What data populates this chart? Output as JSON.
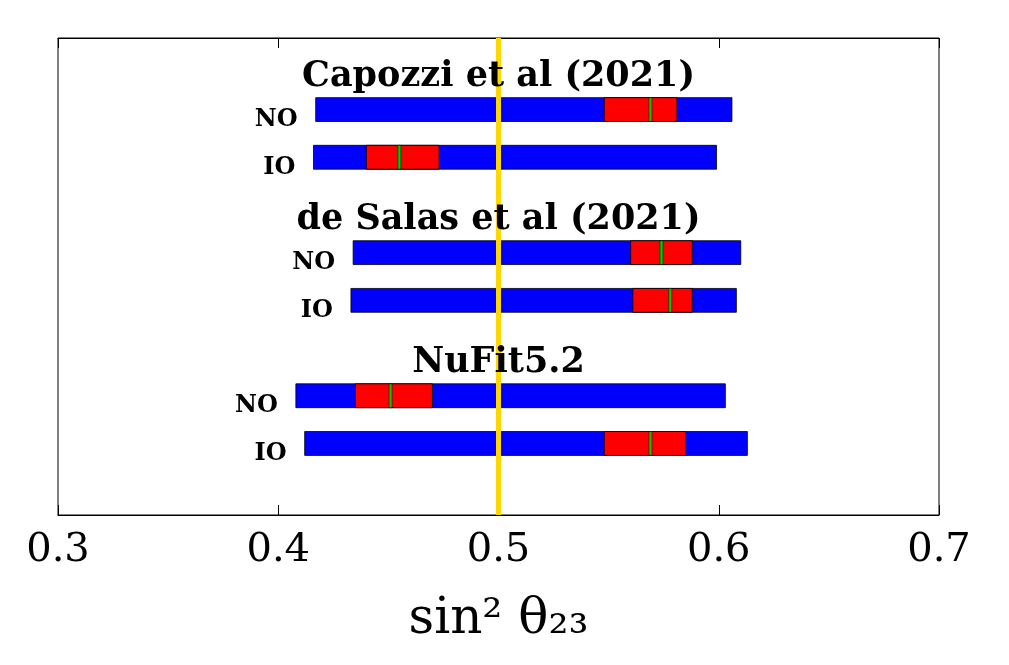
{
  "chart_data": {
    "type": "bar",
    "orientation": "horizontal",
    "categories": [
      "Capozzi et al (2021)",
      "NO",
      "IO",
      "de Salas et al (2021)",
      "NO",
      "IO",
      "NuFit5.2",
      "NO",
      "IO",
      null
    ],
    "series": [
      {
        "color": "#0000ff",
        "base": [
          null,
          0.417,
          0.416,
          null,
          0.434,
          0.433,
          null,
          0.408,
          0.412,
          null
        ],
        "values": [
          null,
          0.189,
          0.183,
          null,
          0.176,
          0.175,
          null,
          0.195,
          0.201,
          null
        ]
      },
      {
        "color": "#ff0000",
        "base": [
          null,
          0.548,
          0.44,
          null,
          0.56,
          0.561,
          null,
          0.435,
          0.548,
          null
        ],
        "values": [
          null,
          0.033,
          0.033,
          null,
          0.028,
          0.027,
          null,
          0.035,
          0.037,
          null
        ]
      },
      {
        "color": "#00cc00",
        "base": [
          null,
          0.569,
          0.455,
          null,
          0.574,
          0.578,
          null,
          0.451,
          0.569,
          null
        ],
        "values": [
          null,
          0,
          0,
          null,
          0,
          0,
          null,
          0,
          0,
          null
        ]
      }
    ],
    "xlim": [
      0.3,
      0.7
    ],
    "xticks": [
      0.3,
      0.4,
      0.5,
      0.6,
      0.7
    ],
    "xlabel": "sin² θ₂₃",
    "ref_lines": [
      {
        "axis": "x",
        "value": 0.5,
        "color": "#ffd700"
      }
    ]
  }
}
